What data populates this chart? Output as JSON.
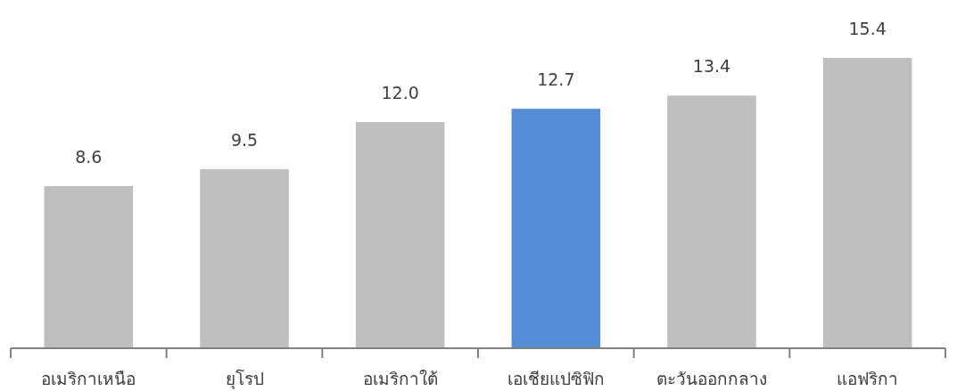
{
  "chart_data": {
    "type": "bar",
    "categories": [
      "อเมริกาเหนือ",
      "ยุโรป",
      "อเมริกาใต้",
      "เอเชียแปซิฟิก",
      "ตะวันออกกลาง",
      "แอฟริกา"
    ],
    "values": [
      8.6,
      9.5,
      12.0,
      12.7,
      13.4,
      15.4
    ],
    "colors": [
      "#bfbfbf",
      "#bfbfbf",
      "#bfbfbf",
      "#558ed5",
      "#bfbfbf",
      "#bfbfbf"
    ],
    "value_labels": [
      "8.6",
      "9.5",
      "12.0",
      "12.7",
      "13.4",
      "15.4"
    ]
  }
}
